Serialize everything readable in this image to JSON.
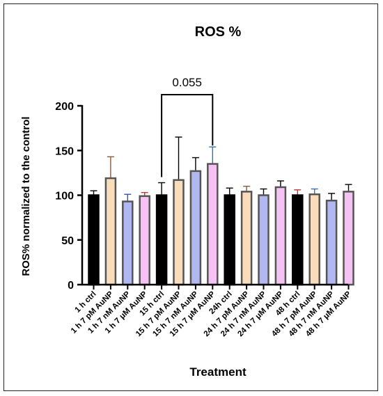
{
  "chart_data": {
    "type": "bar",
    "title": "ROS %",
    "xlabel": "Treatment",
    "ylabel": "ROS% normalized to the control",
    "ylim": [
      0,
      200
    ],
    "yticks": [
      0,
      50,
      100,
      150,
      200
    ],
    "categories": [
      "1 h ctrl",
      "1 h 7 pM AuNP",
      "1 h 7 nM AuNP",
      "1 h 7 μM AuNP",
      "15 h ctrl",
      "15 h 7 pM AuNP",
      "15 h 7 nM AuNP",
      "15 h 7 μM AuNP",
      "24h ctrl",
      "24 h 7 pM AuNP",
      "24 h 7 nM AuNP",
      "24 h 7 μM AuNP",
      "48 h ctrl",
      "48 h 7 pM AuNP",
      "48 h 7 nM AuNP",
      "48 h 7 μM AuNP"
    ],
    "values": [
      100,
      119,
      93,
      99,
      100,
      117,
      127,
      135,
      100,
      104,
      100,
      109,
      100,
      101,
      94,
      104
    ],
    "errors": [
      5,
      24,
      8,
      4,
      14,
      48,
      15,
      19,
      8,
      6,
      7,
      7,
      6,
      6,
      8,
      8
    ],
    "bar_colors": [
      "#000000",
      "#F9DDBB",
      "#B1B7F0",
      "#F5C3F3",
      "#000000",
      "#F9DDBB",
      "#B1B7F0",
      "#F5C3F3",
      "#000000",
      "#F9DDBB",
      "#B1B7F0",
      "#F5C3F3",
      "#000000",
      "#F9DDBB",
      "#B1B7F0",
      "#F5C3F3"
    ],
    "error_colors": [
      "#000000",
      "#8A5A3C",
      "#3A4FB0",
      "#C0392B",
      "#000000",
      "#000000",
      "#000000",
      "#3A6FB0",
      "#000000",
      "#8A5A3C",
      "#000000",
      "#000000",
      "#C0392B",
      "#3A6FB0",
      "#000000",
      "#000000"
    ],
    "bar_edge": "#555555",
    "annotation": {
      "text": "0.055",
      "from": 4,
      "to": 7
    }
  }
}
